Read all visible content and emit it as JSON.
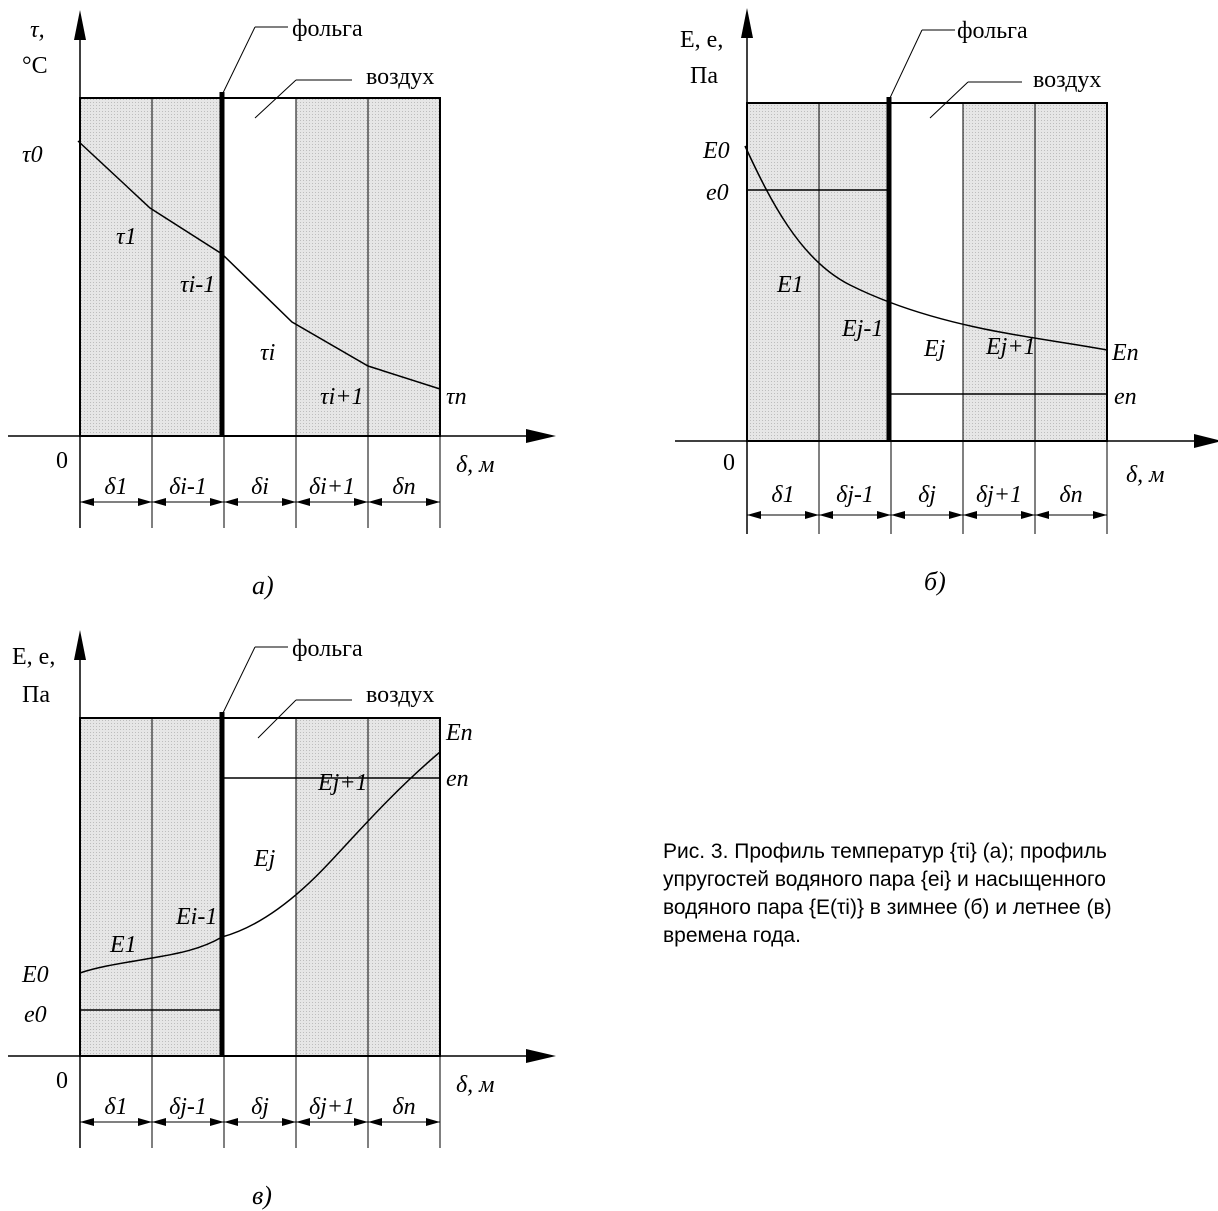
{
  "diagram_a": {
    "y_axis_symbol": "τ,",
    "y_axis_unit": "°C",
    "foil_label": "фольга",
    "air_label": "воздух",
    "origin": "0",
    "x_axis_label": "δ, м",
    "panel_label": "а)",
    "curve_labels": [
      "τ0",
      "τ1",
      "τi-1",
      "τi",
      "τi+1",
      "τn"
    ],
    "thickness_labels": [
      "δ1",
      "δi-1",
      "δi",
      "δi+1",
      "δn"
    ]
  },
  "diagram_b": {
    "y_axis_symbol": "E, e,",
    "y_axis_unit": "Па",
    "foil_label": "фольга",
    "air_label": "воздух",
    "origin": "0",
    "x_axis_label": "δ, м",
    "panel_label": "б)",
    "curve_labels": [
      "E0",
      "e0",
      "E1",
      "Ej-1",
      "Ej",
      "Ej+1",
      "En",
      "en"
    ],
    "thickness_labels": [
      "δ1",
      "δj-1",
      "δj",
      "δj+1",
      "δn"
    ]
  },
  "diagram_c": {
    "y_axis_symbol": "E, e,",
    "y_axis_unit": "Па",
    "foil_label": "фольга",
    "air_label": "воздух",
    "origin": "0",
    "x_axis_label": "δ, м",
    "panel_label": "в)",
    "curve_labels": [
      "E0",
      "e0",
      "E1",
      "Ei-1",
      "Ej",
      "Ej+1",
      "En",
      "en"
    ],
    "thickness_labels": [
      "δ1",
      "δj-1",
      "δj",
      "δj+1",
      "δn"
    ]
  },
  "caption": {
    "line1": "Рис. 3. Профиль температур {τi} (а); профиль",
    "line2": "упругостей водяного пара {ei} и насыщенного",
    "line3": "водяного пара {E(τi)} в зимнее (б) и летнее (в)",
    "line4": "времена года."
  }
}
